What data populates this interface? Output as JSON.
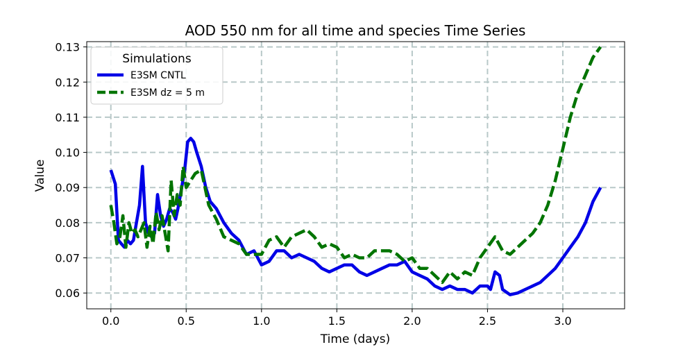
{
  "chart_data": {
    "type": "line",
    "title": "AOD 550 nm for all time and species Time Series",
    "xlabel": "Time (days)",
    "ylabel": "Value",
    "xlim": [
      -0.16,
      3.41
    ],
    "ylim": [
      0.0555,
      0.1315
    ],
    "xticks": [
      0.0,
      0.5,
      1.0,
      1.5,
      2.0,
      2.5,
      3.0
    ],
    "xtick_labels": [
      "0.0",
      "0.5",
      "1.0",
      "1.5",
      "2.0",
      "2.5",
      "3.0"
    ],
    "yticks": [
      0.06,
      0.07,
      0.08,
      0.09,
      0.1,
      0.11,
      0.12,
      0.13
    ],
    "ytick_labels": [
      "0.06",
      "0.07",
      "0.08",
      "0.09",
      "0.10",
      "0.11",
      "0.12",
      "0.13"
    ],
    "grid": true,
    "legend": {
      "title": "Simulations",
      "position": "top-left"
    },
    "series": [
      {
        "name": "E3SM CNTL",
        "color": "#0000e6",
        "style": "solid",
        "x": [
          0.0,
          0.03,
          0.05,
          0.07,
          0.09,
          0.11,
          0.13,
          0.15,
          0.17,
          0.19,
          0.21,
          0.23,
          0.25,
          0.27,
          0.29,
          0.31,
          0.33,
          0.35,
          0.37,
          0.39,
          0.41,
          0.43,
          0.45,
          0.47,
          0.49,
          0.51,
          0.53,
          0.55,
          0.57,
          0.6,
          0.63,
          0.66,
          0.7,
          0.75,
          0.8,
          0.85,
          0.9,
          0.95,
          1.0,
          1.05,
          1.1,
          1.15,
          1.2,
          1.25,
          1.3,
          1.35,
          1.4,
          1.45,
          1.5,
          1.55,
          1.6,
          1.65,
          1.7,
          1.75,
          1.8,
          1.85,
          1.9,
          1.95,
          2.0,
          2.05,
          2.1,
          2.15,
          2.2,
          2.25,
          2.3,
          2.35,
          2.4,
          2.45,
          2.5,
          2.52,
          2.55,
          2.58,
          2.6,
          2.65,
          2.7,
          2.75,
          2.8,
          2.85,
          2.9,
          2.95,
          3.0,
          3.05,
          3.1,
          3.15,
          3.2,
          3.25
        ],
        "y": [
          0.095,
          0.091,
          0.075,
          0.074,
          0.073,
          0.075,
          0.074,
          0.075,
          0.08,
          0.085,
          0.096,
          0.08,
          0.077,
          0.076,
          0.077,
          0.088,
          0.082,
          0.079,
          0.081,
          0.084,
          0.083,
          0.081,
          0.085,
          0.09,
          0.095,
          0.103,
          0.104,
          0.103,
          0.1,
          0.096,
          0.09,
          0.086,
          0.084,
          0.08,
          0.077,
          0.075,
          0.071,
          0.072,
          0.068,
          0.069,
          0.072,
          0.072,
          0.07,
          0.071,
          0.07,
          0.069,
          0.067,
          0.066,
          0.067,
          0.068,
          0.068,
          0.066,
          0.065,
          0.066,
          0.067,
          0.068,
          0.068,
          0.069,
          0.066,
          0.065,
          0.064,
          0.062,
          0.061,
          0.062,
          0.061,
          0.061,
          0.06,
          0.062,
          0.062,
          0.061,
          0.066,
          0.065,
          0.061,
          0.0595,
          0.06,
          0.061,
          0.062,
          0.063,
          0.065,
          0.067,
          0.07,
          0.073,
          0.076,
          0.08,
          0.086,
          0.09
        ]
      },
      {
        "name": "E3SM dz = 5 m",
        "color": "#007400",
        "style": "dashed",
        "x": [
          0.0,
          0.02,
          0.04,
          0.06,
          0.08,
          0.1,
          0.12,
          0.14,
          0.16,
          0.18,
          0.2,
          0.22,
          0.24,
          0.26,
          0.28,
          0.3,
          0.32,
          0.34,
          0.36,
          0.38,
          0.4,
          0.42,
          0.44,
          0.46,
          0.48,
          0.5,
          0.53,
          0.56,
          0.6,
          0.65,
          0.7,
          0.75,
          0.8,
          0.85,
          0.9,
          0.95,
          1.0,
          1.05,
          1.1,
          1.15,
          1.2,
          1.25,
          1.3,
          1.35,
          1.4,
          1.45,
          1.5,
          1.55,
          1.6,
          1.65,
          1.7,
          1.75,
          1.8,
          1.85,
          1.9,
          1.95,
          2.0,
          2.05,
          2.1,
          2.15,
          2.2,
          2.25,
          2.3,
          2.35,
          2.4,
          2.45,
          2.5,
          2.55,
          2.6,
          2.65,
          2.7,
          2.75,
          2.8,
          2.85,
          2.9,
          2.95,
          3.0,
          3.05,
          3.1,
          3.15,
          3.2,
          3.25
        ],
        "y": [
          0.085,
          0.08,
          0.074,
          0.076,
          0.082,
          0.073,
          0.08,
          0.077,
          0.078,
          0.076,
          0.078,
          0.08,
          0.073,
          0.079,
          0.074,
          0.083,
          0.078,
          0.082,
          0.077,
          0.072,
          0.092,
          0.082,
          0.088,
          0.085,
          0.096,
          0.09,
          0.092,
          0.094,
          0.095,
          0.085,
          0.081,
          0.076,
          0.075,
          0.074,
          0.071,
          0.071,
          0.071,
          0.075,
          0.076,
          0.073,
          0.076,
          0.077,
          0.078,
          0.076,
          0.073,
          0.074,
          0.073,
          0.07,
          0.071,
          0.07,
          0.07,
          0.072,
          0.072,
          0.072,
          0.071,
          0.069,
          0.07,
          0.067,
          0.067,
          0.065,
          0.063,
          0.066,
          0.064,
          0.066,
          0.065,
          0.07,
          0.073,
          0.076,
          0.072,
          0.071,
          0.073,
          0.075,
          0.077,
          0.08,
          0.085,
          0.092,
          0.101,
          0.11,
          0.117,
          0.122,
          0.127,
          0.13
        ]
      }
    ]
  }
}
